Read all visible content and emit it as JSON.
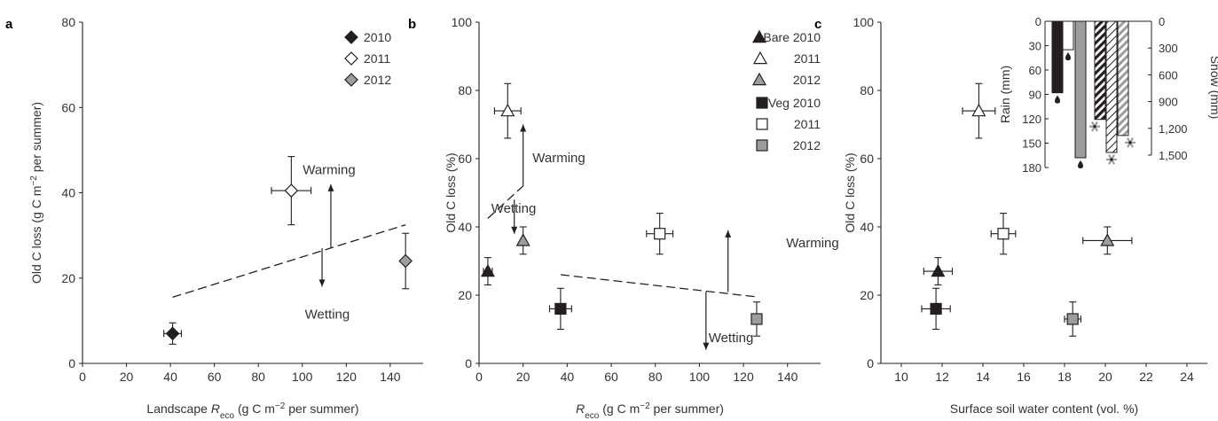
{
  "chart_data": [
    {
      "panel": "a",
      "type": "scatter",
      "xlabel": "Landscape R_eco (g C m^-2 per summer)",
      "xlabel_parts": {
        "pre": "Landscape ",
        "R": "R",
        "sub": "eco",
        "post1": " (g C m",
        "sup": "−2",
        "post2": " per summer)"
      },
      "ylabel": "Old C loss (g C m^-2 per summer)",
      "ylabel_parts": {
        "pre": "Old C loss (g C m",
        "sup": "−2",
        "post": " per summer)"
      },
      "xlim": [
        0,
        155
      ],
      "ylim": [
        0,
        80
      ],
      "xticks": [
        0,
        20,
        40,
        60,
        80,
        100,
        120,
        140
      ],
      "yticks": [
        0,
        20,
        40,
        60,
        80
      ],
      "series": [
        {
          "name": "2010",
          "marker": "diamond",
          "color": "#231f20",
          "x": 41,
          "y": 7,
          "xerr": 4,
          "yerr": 2.5
        },
        {
          "name": "2011",
          "marker": "diamond",
          "color": "#ffffff",
          "x": 95,
          "y": 40.5,
          "xerr": 9,
          "yerr": 8
        },
        {
          "name": "2012",
          "marker": "diamond",
          "color": "#9d9d9c",
          "x": 147,
          "y": 24,
          "xerr": 0,
          "yerr": 6.5
        }
      ],
      "trendline": {
        "x": [
          41,
          147
        ],
        "y": [
          15.5,
          32.5
        ]
      },
      "arrows": [
        {
          "label": "Warming",
          "x": 113,
          "y_from": 27,
          "y_to": 42
        },
        {
          "label": "Wetting",
          "x": 109,
          "y_from": 27,
          "y_to": 18
        }
      ]
    },
    {
      "panel": "b",
      "type": "scatter",
      "xlabel": "R_eco (g C m^-2 per summer)",
      "xlabel_parts": {
        "R": "R",
        "sub": "eco",
        "post1": " (g C m",
        "sup": "−2",
        "post2": " per summer)"
      },
      "ylabel": "Old C loss (%)",
      "xlim": [
        0,
        155
      ],
      "ylim": [
        0,
        100
      ],
      "xticks": [
        0,
        20,
        40,
        60,
        80,
        100,
        120,
        140
      ],
      "yticks": [
        0,
        20,
        40,
        60,
        80,
        100
      ],
      "series": [
        {
          "name": "Bare 2010",
          "marker": "triangle",
          "color": "#231f20",
          "x": 4,
          "y": 27,
          "xerr": 2,
          "yerr": 4
        },
        {
          "name": "2011",
          "marker": "triangle",
          "color": "#ffffff",
          "x": 13,
          "y": 74,
          "xerr": 6,
          "yerr": 8
        },
        {
          "name": "2012",
          "marker": "triangle",
          "color": "#9d9d9c",
          "x": 20,
          "y": 36,
          "xerr": 0,
          "yerr": 4
        },
        {
          "name": "Veg 2010",
          "marker": "square",
          "color": "#231f20",
          "x": 37,
          "y": 16,
          "xerr": 5,
          "yerr": 6
        },
        {
          "name": "2011",
          "marker": "square",
          "color": "#ffffff",
          "x": 82,
          "y": 38,
          "xerr": 6,
          "yerr": 6
        },
        {
          "name": "2012",
          "marker": "square",
          "color": "#9d9d9c",
          "x": 126,
          "y": 13,
          "xerr": 0,
          "yerr": 5
        }
      ],
      "trendlines": [
        {
          "x": [
            4,
            20
          ],
          "y": [
            42.5,
            52
          ]
        },
        {
          "x": [
            37,
            126
          ],
          "y": [
            26,
            19.5
          ]
        }
      ],
      "arrows": [
        {
          "label": "Warming",
          "x": 20,
          "y_from": 52,
          "y_to": 70,
          "label_pos": "right"
        },
        {
          "label": "Wetting",
          "x": 16,
          "y_from": 48,
          "y_to": 38,
          "label_pos": "right"
        },
        {
          "label": "Warming",
          "x": 113,
          "y_from": 21,
          "y_to": 39,
          "label_pos": "right"
        },
        {
          "label": "Wetting",
          "x": 103,
          "y_from": 21,
          "y_to": 4,
          "label_pos": "left"
        }
      ]
    },
    {
      "panel": "c",
      "type": "scatter",
      "xlabel": "Surface soil water content (vol. %)",
      "ylabel": "Old C loss (%)",
      "xlim": [
        9,
        25
      ],
      "ylim": [
        0,
        100
      ],
      "xticks": [
        10,
        12,
        14,
        16,
        18,
        20,
        22,
        24
      ],
      "yticks": [
        0,
        20,
        40,
        60,
        80,
        100
      ],
      "series": [
        {
          "name": "Bare 2010",
          "marker": "triangle",
          "color": "#231f20",
          "x": 11.8,
          "y": 27,
          "xerr": 0.7,
          "yerr": 4
        },
        {
          "name": "Bare 2011",
          "marker": "triangle",
          "color": "#ffffff",
          "x": 13.8,
          "y": 74,
          "xerr": 0.8,
          "yerr": 8
        },
        {
          "name": "Bare 2012",
          "marker": "triangle",
          "color": "#9d9d9c",
          "x": 20.1,
          "y": 36,
          "xerr": 1.2,
          "yerr": 4
        },
        {
          "name": "Veg 2010",
          "marker": "square",
          "color": "#231f20",
          "x": 11.7,
          "y": 16,
          "xerr": 0.7,
          "yerr": 6
        },
        {
          "name": "Veg 2011",
          "marker": "square",
          "color": "#ffffff",
          "x": 15.0,
          "y": 38,
          "xerr": 0.6,
          "yerr": 6
        },
        {
          "name": "Veg 2012",
          "marker": "square",
          "color": "#9d9d9c",
          "x": 18.4,
          "y": 13,
          "xerr": 0.4,
          "yerr": 5
        }
      ],
      "inset": {
        "type": "bar",
        "left_axis_label": "Rain (mm)",
        "right_axis_label": "Snow (mm)",
        "rain_ticks": [
          0,
          30,
          60,
          90,
          120,
          150,
          180
        ],
        "snow_ticks": [
          "0",
          "300",
          "600",
          "900",
          "1,200",
          "1,500"
        ],
        "snow_tick_values": [
          0,
          300,
          600,
          900,
          1200,
          1500
        ],
        "rain_bars": [
          {
            "year": "2010",
            "value": 88,
            "color": "#231f20"
          },
          {
            "year": "2011",
            "value": 35,
            "color": "#ffffff"
          },
          {
            "year": "2012",
            "value": 168,
            "color": "#9d9d9c"
          }
        ],
        "snow_bars": [
          {
            "year": "2010",
            "value": 1100,
            "color": "#231f20",
            "hatch": true
          },
          {
            "year": "2011",
            "value": 1470,
            "color": "#ffffff",
            "hatch": true
          },
          {
            "year": "2012",
            "value": 1280,
            "color": "#9d9d9c",
            "hatch": true
          }
        ]
      }
    }
  ],
  "panel_letters": [
    "a",
    "b",
    "c"
  ]
}
